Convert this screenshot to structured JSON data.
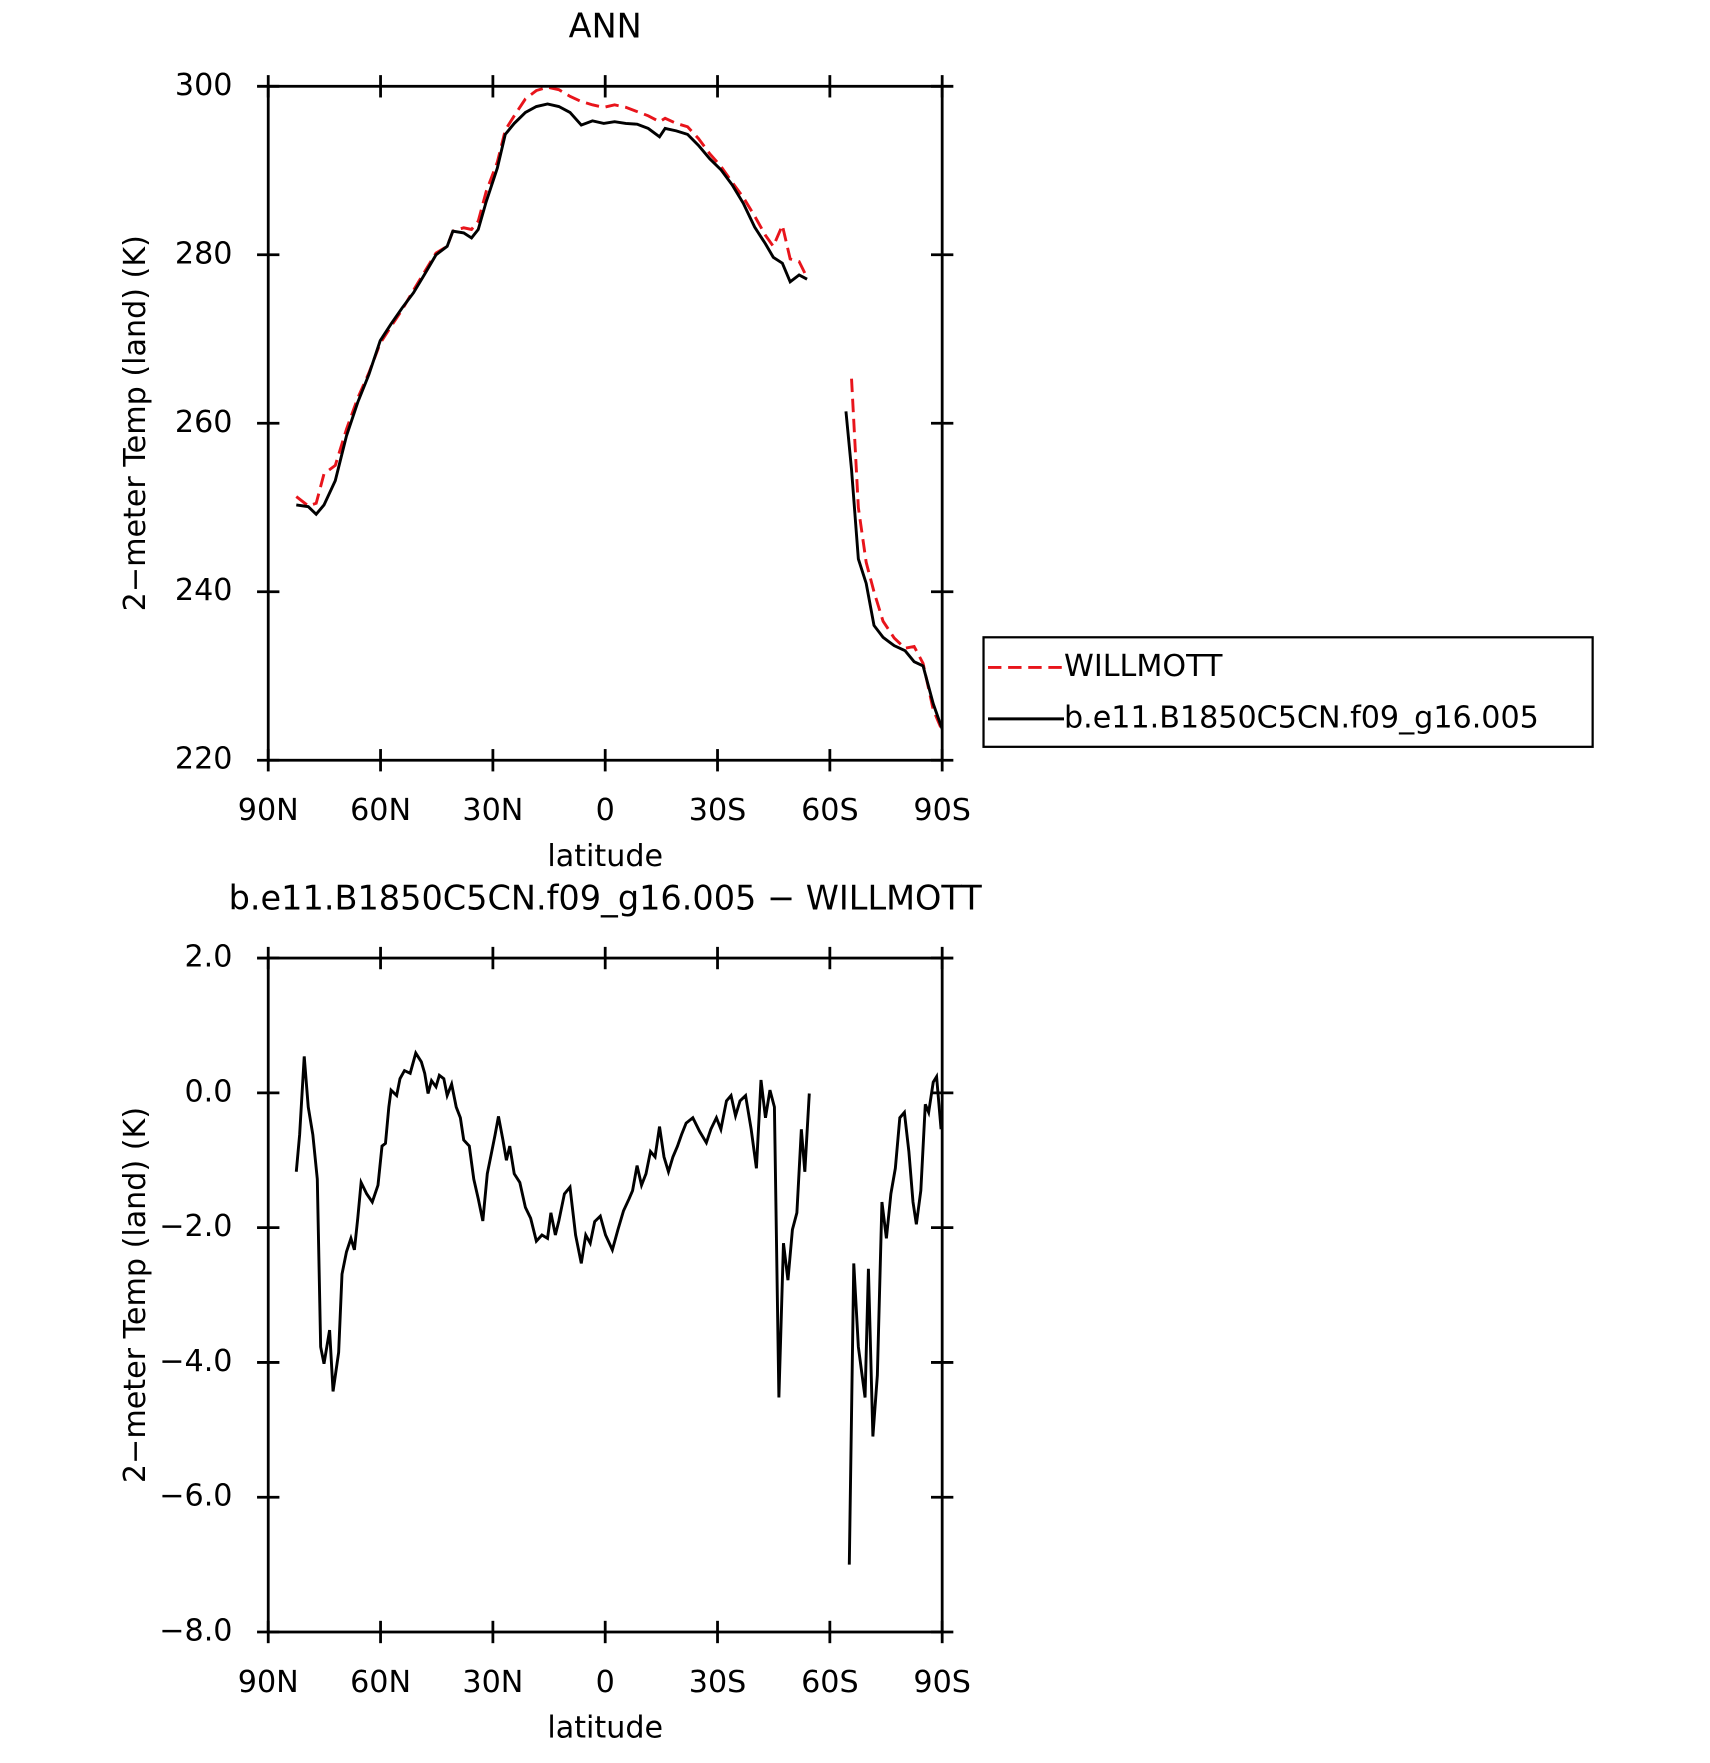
{
  "chart_data": [
    {
      "type": "line",
      "title": "ANN",
      "xlabel": "latitude",
      "ylabel": "2−meter Temp (land) (K)",
      "xlim": [
        90,
        -90
      ],
      "xticks": [
        {
          "value": 90,
          "label": "90N"
        },
        {
          "value": 60,
          "label": "60N"
        },
        {
          "value": 30,
          "label": "30N"
        },
        0,
        {
          "value": -30,
          "label": "30S"
        },
        {
          "value": -60,
          "label": "60S"
        },
        {
          "value": -90,
          "label": "90S"
        }
      ],
      "ylim": [
        220,
        300
      ],
      "yticks": [
        220,
        240,
        260,
        280,
        300
      ],
      "legend": "right",
      "x": [
        82.5,
        79.3,
        77.2,
        75.1,
        72.1,
        69.1,
        66.1,
        63.1,
        60.1,
        57.2,
        54.2,
        51.2,
        48.2,
        45.2,
        42.2,
        40.7,
        37.8,
        35.7,
        33.9,
        31.8,
        28.8,
        26.7,
        24.3,
        21.3,
        18.4,
        15.4,
        12.4,
        9.4,
        6.4,
        3.4,
        0.4,
        -2.5,
        -5.5,
        -8.5,
        -11.5,
        -14.5,
        -16.0,
        -19.0,
        -22.0,
        -24.9,
        -27.9,
        -30.9,
        -33.9,
        -36.9,
        -39.9,
        -42.8,
        -44.9,
        -47.3,
        -49.4,
        -51.8,
        -53.9,
        -60,
        -64.3,
        -65.8,
        -67.6,
        -69.7,
        -71.8,
        -74.2,
        -77.2,
        -80.1,
        -82.5,
        -84.9,
        -87.6,
        -90
      ],
      "series": [
        {
          "name": "WILLMOTT",
          "color": "#e8141b",
          "dashed": true,
          "values": [
            251.3,
            250.2,
            250.5,
            254.0,
            255.0,
            259.3,
            263.0,
            266.0,
            269.5,
            271.5,
            273.5,
            275.8,
            278.0,
            280.2,
            281.0,
            282.8,
            283.2,
            283.0,
            284.0,
            287.5,
            291.0,
            294.8,
            296.5,
            298.5,
            299.5,
            299.9,
            299.6,
            298.8,
            298.2,
            297.8,
            297.5,
            297.8,
            297.5,
            297.0,
            296.5,
            295.8,
            296.2,
            295.6,
            295.2,
            293.8,
            292.0,
            290.5,
            288.6,
            286.8,
            284.6,
            282.3,
            281.0,
            283.5,
            279.5,
            279.2,
            277.3,
            null,
            null,
            265.3,
            250.0,
            243.5,
            240.0,
            236.5,
            234.5,
            233.3,
            233.5,
            231.5,
            226.0,
            223.5
          ]
        },
        {
          "name": "b.e11.B1850C5CN.f09_g16.005",
          "color": "#000000",
          "dashed": false,
          "values": [
            250.3,
            250.1,
            249.2,
            250.3,
            253.2,
            258.5,
            262.5,
            265.8,
            269.8,
            271.8,
            273.7,
            275.5,
            277.7,
            280.0,
            281.0,
            282.8,
            282.6,
            282.0,
            283.0,
            286.3,
            290.3,
            294.3,
            295.6,
            296.9,
            297.6,
            297.9,
            297.6,
            296.9,
            295.4,
            295.9,
            295.6,
            295.8,
            295.6,
            295.5,
            295.0,
            294.0,
            295.0,
            294.7,
            294.3,
            293.0,
            291.4,
            290.1,
            288.3,
            286.1,
            283.3,
            281.3,
            279.7,
            279.0,
            276.8,
            277.6,
            277.1,
            null,
            261.4,
            254.5,
            243.9,
            241.0,
            236.0,
            234.6,
            233.6,
            233.0,
            231.7,
            231.2,
            226.7,
            223.7
          ]
        }
      ]
    },
    {
      "type": "line",
      "title": "b.e11.B1850C5CN.f09_g16.005 − WILLMOTT",
      "xlabel": "latitude",
      "ylabel": "2−meter Temp (land) (K)",
      "xlim": [
        90,
        -90
      ],
      "xticks": [
        {
          "value": 90,
          "label": "90N"
        },
        {
          "value": 60,
          "label": "60N"
        },
        {
          "value": 30,
          "label": "30N"
        },
        0,
        {
          "value": -30,
          "label": "30S"
        },
        {
          "value": -60,
          "label": "60S"
        },
        {
          "value": -90,
          "label": "90S"
        }
      ],
      "ylim": [
        -8,
        2
      ],
      "yticks": [
        {
          "value": -8,
          "label": "−8.0"
        },
        {
          "value": -6,
          "label": "−6.0"
        },
        {
          "value": -4,
          "label": "−4.0"
        },
        {
          "value": -2,
          "label": "−2.0"
        },
        {
          "value": 0,
          "label": "0.0"
        },
        {
          "value": 2,
          "label": "2.0"
        }
      ],
      "x": [
        82.5,
        81.6,
        80.4,
        79.3,
        78.1,
        76.9,
        76.0,
        75.1,
        73.6,
        72.7,
        71.2,
        70.3,
        69.1,
        67.9,
        67.0,
        66.1,
        65.2,
        63.7,
        62.2,
        60.7,
        59.6,
        58.7,
        57.8,
        57.2,
        55.7,
        54.8,
        53.6,
        52.1,
        50.6,
        49.1,
        48.2,
        47.3,
        46.4,
        45.2,
        44.3,
        43.1,
        42.2,
        41.0,
        39.8,
        38.7,
        37.8,
        36.3,
        35.1,
        33.9,
        32.7,
        31.5,
        30.3,
        29.4,
        28.5,
        27.3,
        26.4,
        25.5,
        24.3,
        22.8,
        21.3,
        19.9,
        18.4,
        16.9,
        15.4,
        14.5,
        13.3,
        12.4,
        10.9,
        9.4,
        7.9,
        6.4,
        5.2,
        4.0,
        2.8,
        1.3,
        -0.1,
        -1.9,
        -3.4,
        -4.9,
        -6.4,
        -7.3,
        -8.5,
        -9.7,
        -10.9,
        -12.1,
        -13.3,
        -14.5,
        -15.7,
        -16.9,
        -18.1,
        -19.3,
        -20.4,
        -21.6,
        -23.4,
        -25.2,
        -27.0,
        -28.2,
        -29.7,
        -30.9,
        -32.4,
        -33.6,
        -34.8,
        -36.0,
        -37.5,
        -39.0,
        -40.4,
        -41.6,
        -42.8,
        -44.0,
        -45.2,
        -46.4,
        -47.6,
        -48.8,
        -50.0,
        -51.2,
        -52.4,
        -53.3,
        -54.5,
        -60,
        -65.2,
        -66.4,
        -67.6,
        -69.4,
        -70.3,
        -71.5,
        -72.7,
        -73.9,
        -75.1,
        -76.3,
        -77.5,
        -78.7,
        -79.9,
        -81.1,
        -82.2,
        -83.1,
        -84.3,
        -85.5,
        -86.4,
        -87.6,
        -88.5,
        -89.7
      ],
      "series": [
        {
          "color": "#000000",
          "dashed": false,
          "values": [
            -1.17,
            -0.62,
            0.54,
            -0.21,
            -0.62,
            -1.28,
            -3.77,
            -4.02,
            -3.52,
            -4.43,
            -3.85,
            -2.69,
            -2.36,
            -2.16,
            -2.33,
            -1.86,
            -1.33,
            -1.5,
            -1.62,
            -1.37,
            -0.79,
            -0.75,
            -0.21,
            0.04,
            -0.04,
            0.21,
            0.33,
            0.29,
            0.59,
            0.46,
            0.29,
            -0.01,
            0.18,
            0.09,
            0.26,
            0.21,
            -0.04,
            0.13,
            -0.21,
            -0.37,
            -0.7,
            -0.79,
            -1.28,
            -1.57,
            -1.9,
            -1.2,
            -0.87,
            -0.62,
            -0.35,
            -0.7,
            -1.0,
            -0.79,
            -1.2,
            -1.33,
            -1.7,
            -1.86,
            -2.2,
            -2.11,
            -2.16,
            -1.78,
            -2.11,
            -1.9,
            -1.5,
            -1.4,
            -2.11,
            -2.53,
            -2.11,
            -2.23,
            -1.91,
            -1.83,
            -2.11,
            -2.33,
            -2.03,
            -1.75,
            -1.57,
            -1.45,
            -1.08,
            -1.37,
            -1.2,
            -0.87,
            -0.95,
            -0.5,
            -0.95,
            -1.17,
            -0.95,
            -0.79,
            -0.62,
            -0.45,
            -0.37,
            -0.57,
            -0.74,
            -0.54,
            -0.37,
            -0.54,
            -0.12,
            -0.04,
            -0.34,
            -0.12,
            -0.04,
            -0.54,
            -1.12,
            0.19,
            -0.37,
            0.04,
            -0.21,
            -4.52,
            -2.23,
            -2.78,
            -2.03,
            -1.78,
            -0.54,
            -1.17,
            -0.01,
            null,
            -7.0,
            -2.53,
            -3.77,
            -4.52,
            -2.61,
            -5.1,
            -4.19,
            -1.62,
            -2.16,
            -1.5,
            -1.12,
            -0.37,
            -0.29,
            -0.87,
            -1.62,
            -1.95,
            -1.45,
            -0.17,
            -0.29,
            0.16,
            0.24,
            -0.54
          ]
        }
      ]
    }
  ]
}
